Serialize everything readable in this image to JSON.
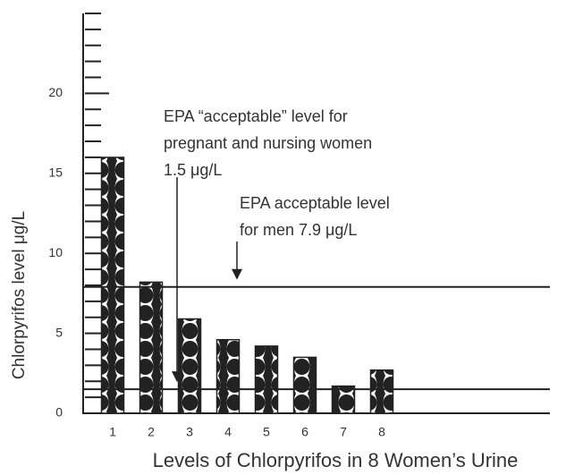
{
  "chart_data": {
    "type": "bar",
    "x_label": "Levels of Chlorpyrifos in 8 Women’s Urine",
    "y_label": "Chlorpyrifos level μg/L",
    "categories": [
      "1",
      "2",
      "3",
      "4",
      "5",
      "6",
      "7",
      "8"
    ],
    "values": [
      16,
      8.2,
      5.9,
      4.6,
      4.2,
      3.5,
      1.7,
      2.7
    ],
    "ylim": [
      0,
      25
    ],
    "yticks": [
      0,
      5,
      10,
      15,
      20
    ],
    "minor_yticks": [
      1,
      2,
      3,
      4,
      6,
      7,
      8,
      9,
      11,
      12,
      13,
      14,
      16,
      17,
      18,
      19,
      21,
      22,
      23,
      24,
      25
    ],
    "reference_lines": [
      {
        "value": 1.5,
        "label": [
          "EPA “acceptable” level for",
          "pregnant and nursing women",
          "1.5 μg/L"
        ]
      },
      {
        "value": 7.9,
        "label": [
          "EPA acceptable level",
          "for men 7.9 μg/L"
        ]
      }
    ]
  }
}
